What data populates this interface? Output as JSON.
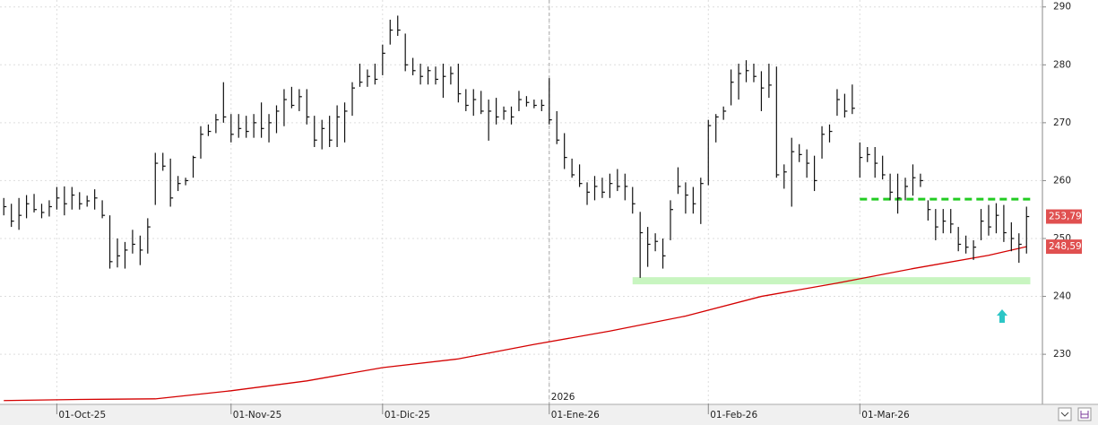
{
  "chart_data": {
    "type": "ohlc",
    "xlim": [
      -0.5,
      137.1
    ],
    "ylim": [
      221.5,
      291.2
    ],
    "yticks": [
      230,
      240,
      250,
      260,
      270,
      280,
      290
    ],
    "xticks": [
      {
        "value": 7,
        "label": "01-Oct-25"
      },
      {
        "value": 30,
        "label": "01-Nov-25"
      },
      {
        "value": 50,
        "label": "01-Dic-25"
      },
      {
        "value": 72,
        "label": "01-Ene-26"
      },
      {
        "value": 93,
        "label": "01-Feb-26"
      },
      {
        "value": 113,
        "label": "01-Mar-26"
      }
    ],
    "year_label": {
      "value": 72,
      "label": "2026"
    },
    "grid": true,
    "bar_color": "#111111",
    "high": [
      257,
      256,
      257,
      257.5,
      257.7,
      256,
      256.6,
      258.9,
      259,
      258.9,
      258,
      257.4,
      258.5,
      256.6,
      254,
      250,
      249.4,
      251.5,
      250.5,
      253.5,
      264.8,
      264.8,
      263.8,
      260.8,
      260.5,
      264.3,
      269.4,
      269.7,
      271.5,
      277,
      271.5,
      271.5,
      271.2,
      271.5,
      273.5,
      271.5,
      273,
      275.8,
      276.2,
      275.8,
      275.8,
      271.2,
      270.5,
      271.2,
      273,
      273.5,
      277,
      280.2,
      279.2,
      280.2,
      283.5,
      287.8,
      288.5,
      285.4,
      281.2,
      280.2,
      279.7,
      279.7,
      280.2,
      279.7,
      280.2,
      275.8,
      275.8,
      275.5,
      274,
      274.3,
      272.8,
      272.8,
      275.5,
      274.6,
      274,
      274,
      277.7,
      272,
      268.2,
      263.8,
      262.8,
      259.7,
      260.8,
      260.5,
      261.2,
      262,
      261.2,
      258.9,
      254.6,
      252,
      250.9,
      250,
      256.6,
      262.3,
      259.7,
      258.9,
      260.5,
      270.5,
      271.5,
      272.8,
      279.2,
      280.2,
      280.8,
      280.2,
      278.9,
      280.2,
      279.7,
      262.8,
      267.4,
      266.3,
      265.4,
      264.3,
      269.4,
      269.7,
      275.8,
      275,
      276.6,
      266.6,
      265.8,
      265.8,
      264.3,
      261.2,
      261.2,
      260.5,
      262.8,
      261.2,
      256.6,
      255.1,
      255.1,
      255.1,
      252,
      250.5,
      249.7,
      255.1,
      255.8,
      256.1,
      255.8,
      252.8,
      250.9,
      255.5
    ],
    "low": [
      254,
      252,
      251.5,
      253.5,
      254.5,
      253.5,
      253.8,
      255,
      254,
      255,
      255,
      255.5,
      255,
      253.5,
      244.8,
      245,
      244.8,
      247.4,
      245.4,
      247.4,
      255.8,
      261.7,
      255.5,
      258.2,
      259.2,
      260.5,
      263.8,
      267.7,
      268.2,
      270,
      266.6,
      267.4,
      267.4,
      267.4,
      267.4,
      266.6,
      268.2,
      269.4,
      272.5,
      272,
      269.7,
      265.8,
      265.4,
      265.8,
      265.8,
      266.6,
      271.2,
      276.2,
      276.2,
      276.6,
      278.2,
      283.5,
      285,
      278.9,
      278.2,
      276.6,
      276.6,
      276.6,
      274.3,
      276.6,
      273.5,
      272,
      271.2,
      271.5,
      266.9,
      269.7,
      270.5,
      269.7,
      272,
      272.8,
      272.5,
      272,
      269.7,
      266.3,
      262,
      260.5,
      258.9,
      255.8,
      256.6,
      257,
      257,
      258.2,
      256.6,
      254.3,
      243.2,
      245.1,
      247.8,
      244.8,
      249.7,
      257.7,
      254.3,
      254.3,
      252.5,
      259.2,
      266.6,
      270.5,
      273,
      274,
      277,
      277,
      272,
      274.3,
      260.5,
      258.6,
      255.5,
      263.2,
      260.5,
      258.2,
      263.8,
      266.6,
      271.2,
      270.9,
      271.5,
      260.5,
      263.2,
      260.5,
      260.2,
      256.6,
      254.3,
      256.6,
      257.4,
      258.9,
      253.1,
      249.7,
      250.9,
      250.9,
      247.8,
      247.4,
      246.3,
      249.7,
      250.5,
      250.9,
      249.4,
      247.8,
      245.8,
      247.4
    ],
    "close": [
      255.5,
      253,
      254,
      256,
      255,
      254.5,
      255.5,
      257,
      256,
      257.5,
      256,
      256.5,
      257,
      254,
      246,
      247,
      248,
      249,
      248,
      252,
      263,
      262.5,
      257,
      259.5,
      260,
      264,
      268,
      268.5,
      270.5,
      271,
      268,
      269,
      268.5,
      270,
      269,
      270,
      272,
      274,
      273,
      274.5,
      271,
      267,
      269,
      267,
      271,
      272,
      276,
      277,
      278,
      277.5,
      282,
      286,
      286,
      280,
      279,
      278,
      279,
      277.5,
      278,
      278.5,
      275,
      273,
      274,
      272,
      272,
      271,
      272,
      271,
      274,
      273.5,
      273,
      273,
      270.5,
      267,
      264,
      261,
      259.5,
      258,
      259,
      258,
      259.5,
      259,
      259,
      256,
      251,
      249,
      249.5,
      247,
      255,
      259,
      257.5,
      256,
      259.5,
      269.5,
      271,
      272,
      277,
      278.5,
      279,
      278,
      276,
      276.5,
      261,
      261.5,
      265,
      264.5,
      263,
      260,
      268,
      268.5,
      274,
      272,
      272.5,
      264,
      264.5,
      263,
      261,
      258,
      257,
      259,
      260.5,
      260,
      255,
      252,
      253,
      252.5,
      249,
      248.5,
      248.5,
      253,
      252,
      254,
      251,
      250,
      249,
      253.79
    ],
    "moving_average": {
      "color": "#d40000",
      "x": [
        0,
        10,
        20,
        30,
        40,
        50,
        60,
        70,
        80,
        90,
        100,
        110,
        120,
        130,
        135
      ],
      "values": [
        222,
        222.2,
        222.3,
        223.7,
        225.4,
        227.7,
        229.2,
        231.7,
        234,
        236.6,
        240,
        242.3,
        244.8,
        247.1,
        248.59
      ]
    },
    "levels": [
      {
        "value": 256.8,
        "from": 113,
        "to": 135.5,
        "color": "#22cc22",
        "style": "dashed"
      },
      {
        "value": 242.7,
        "from": 83,
        "to": 135.5,
        "color": "#c8f5c0",
        "style": "band"
      }
    ],
    "price_tags": [
      {
        "value": 253.79,
        "label": "253,79",
        "color": "#e05050"
      },
      {
        "value": 248.59,
        "label": "248,59",
        "color": "#e05050"
      }
    ]
  }
}
